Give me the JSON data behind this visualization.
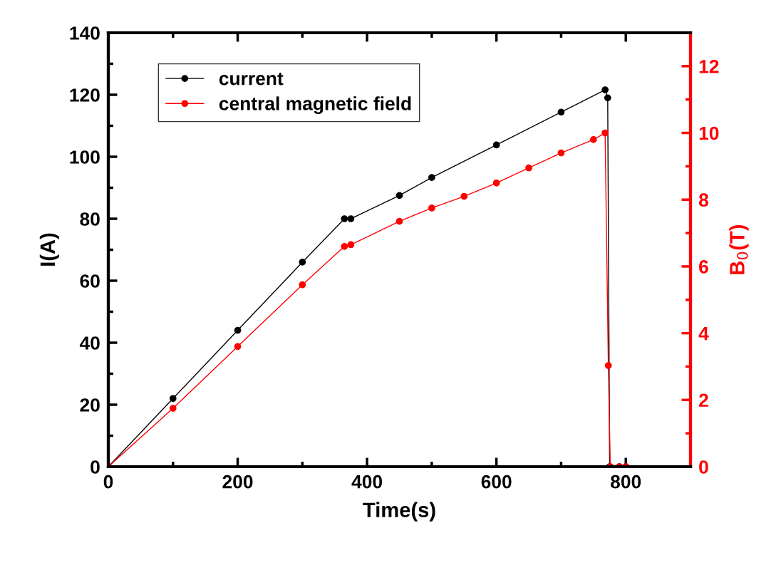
{
  "chart_data": {
    "type": "line",
    "xlabel": "Time(s)",
    "ylabel": "I(A)",
    "y2label": "B$_{0}$(T)",
    "xlim": [
      0,
      900
    ],
    "xticks": [
      0,
      200,
      400,
      600,
      800
    ],
    "ylim": [
      0,
      140
    ],
    "yticks": [
      0,
      20,
      40,
      60,
      80,
      100,
      120,
      140
    ],
    "y2lim": [
      0,
      13
    ],
    "y2ticks": [
      0,
      2,
      4,
      6,
      8,
      10,
      12
    ],
    "legend": "top left",
    "marker": "circle",
    "line_style": "solid",
    "grid": false,
    "series": [
      {
        "name": "current",
        "color": "#000000",
        "x": [
          0,
          100,
          200,
          300,
          365,
          375,
          450,
          500,
          600,
          700,
          768,
          772,
          775,
          790,
          800
        ],
        "values": [
          0,
          22,
          44,
          66,
          80,
          80,
          87.5,
          93.3,
          103.8,
          114.4,
          121.6,
          119,
          0,
          0,
          0
        ]
      },
      {
        "name": "central magnetic field",
        "color": "#ff0000",
        "axis": "y2",
        "x": [
          0,
          100,
          200,
          300,
          365,
          375,
          450,
          500,
          550,
          600,
          650,
          700,
          750,
          768,
          773,
          776,
          790,
          800
        ],
        "values": [
          0,
          1.75,
          3.6,
          5.45,
          6.6,
          6.65,
          7.35,
          7.75,
          8.1,
          8.5,
          8.95,
          9.4,
          9.8,
          10.0,
          3.03,
          0,
          0,
          0
        ]
      }
    ]
  }
}
